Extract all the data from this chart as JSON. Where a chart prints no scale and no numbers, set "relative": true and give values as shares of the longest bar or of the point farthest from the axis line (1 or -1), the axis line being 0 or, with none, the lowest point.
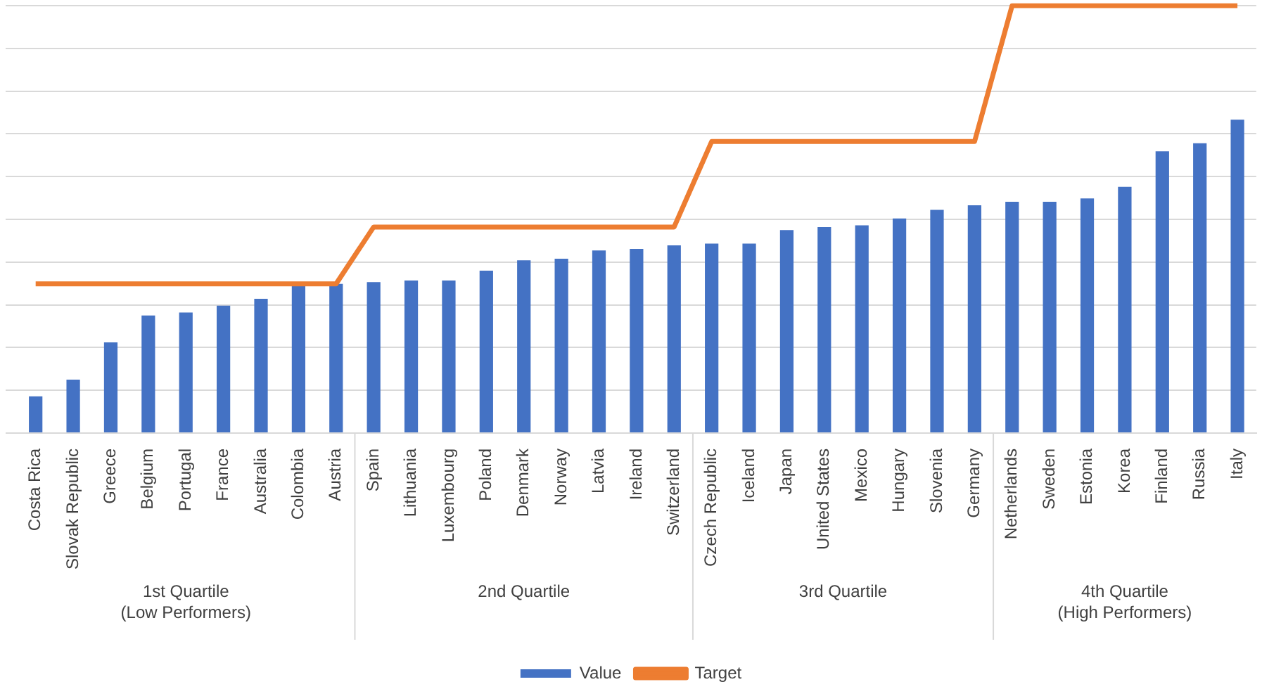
{
  "chart_data": {
    "type": "bar",
    "relative": true,
    "grid": "y",
    "legend": "bottom",
    "categories": [
      "Costa Rica",
      "Slovak Republic",
      "Greece",
      "Belgium",
      "Portugal",
      "France",
      "Australia",
      "Colombia",
      "Austria",
      "Spain",
      "Lithuania",
      "Luxembourg",
      "Poland",
      "Denmark",
      "Norway",
      "Latvia",
      "Ireland",
      "Switzerland",
      "Czech Republic",
      "Iceland",
      "Japan",
      "United States",
      "Mexico",
      "Hungary",
      "Slovenia",
      "Germany",
      "Netherlands",
      "Sweden",
      "Estonia",
      "Korea",
      "Finland",
      "Russia",
      "Italy"
    ],
    "series": [
      {
        "name": "Value",
        "color": "#4472c4",
        "values": [
          0.086,
          0.125,
          0.212,
          0.275,
          0.282,
          0.298,
          0.314,
          0.345,
          0.349,
          0.353,
          0.357,
          0.357,
          0.38,
          0.404,
          0.408,
          0.427,
          0.431,
          0.439,
          0.443,
          0.443,
          0.475,
          0.482,
          0.486,
          0.502,
          0.522,
          0.533,
          0.541,
          0.541,
          0.549,
          0.576,
          0.659,
          0.678,
          0.733
        ]
      },
      {
        "name": "Target",
        "type": "line",
        "color": "#ed7d31",
        "values": [
          0.349,
          0.349,
          0.349,
          0.349,
          0.349,
          0.349,
          0.349,
          0.349,
          0.349,
          0.482,
          0.482,
          0.482,
          0.482,
          0.482,
          0.482,
          0.482,
          0.482,
          0.482,
          0.682,
          0.682,
          0.682,
          0.682,
          0.682,
          0.682,
          0.682,
          0.682,
          1,
          1,
          1,
          1,
          1,
          1,
          1
        ]
      }
    ],
    "annotations": [
      "1st Quartile\n(Low Performers)",
      "2nd Quartile",
      "3rd Quartile",
      "4th Quartile\n(High Performers)"
    ]
  }
}
